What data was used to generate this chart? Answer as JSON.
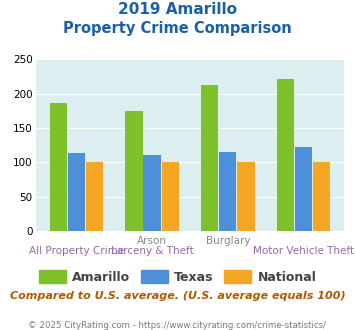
{
  "title_line1": "2019 Amarillo",
  "title_line2": "Property Crime Comparison",
  "groups": [
    {
      "label": "All Property Crime",
      "amarillo": 186,
      "texas": 113,
      "national": 100
    },
    {
      "label": "Arson / Larceny & Theft",
      "amarillo": 175,
      "texas": 111,
      "national": 100
    },
    {
      "label": "Burglary",
      "amarillo": 212,
      "texas": 115,
      "national": 100
    },
    {
      "label": "Motor Vehicle Theft",
      "amarillo": 221,
      "texas": 122,
      "national": 100
    }
  ],
  "top_labels": [
    "",
    "Arson",
    "Burglary",
    ""
  ],
  "bottom_labels": [
    "All Property Crime",
    "Larceny & Theft",
    "",
    "Motor Vehicle Theft"
  ],
  "amarillo_color": "#7dc22a",
  "texas_color": "#4d8fdb",
  "national_color": "#f5a623",
  "bg_color": "#ddeef0",
  "ylim": [
    0,
    250
  ],
  "yticks": [
    0,
    50,
    100,
    150,
    200,
    250
  ],
  "footnote": "Compared to U.S. average. (U.S. average equals 100)",
  "copyright": "© 2025 CityRating.com - https://www.cityrating.com/crime-statistics/",
  "title_color": "#1a5fa8",
  "footnote_color": "#b05a00",
  "copyright_color": "#7a7a7a",
  "top_label_color": "#888888",
  "bottom_label_color": "#9966aa"
}
